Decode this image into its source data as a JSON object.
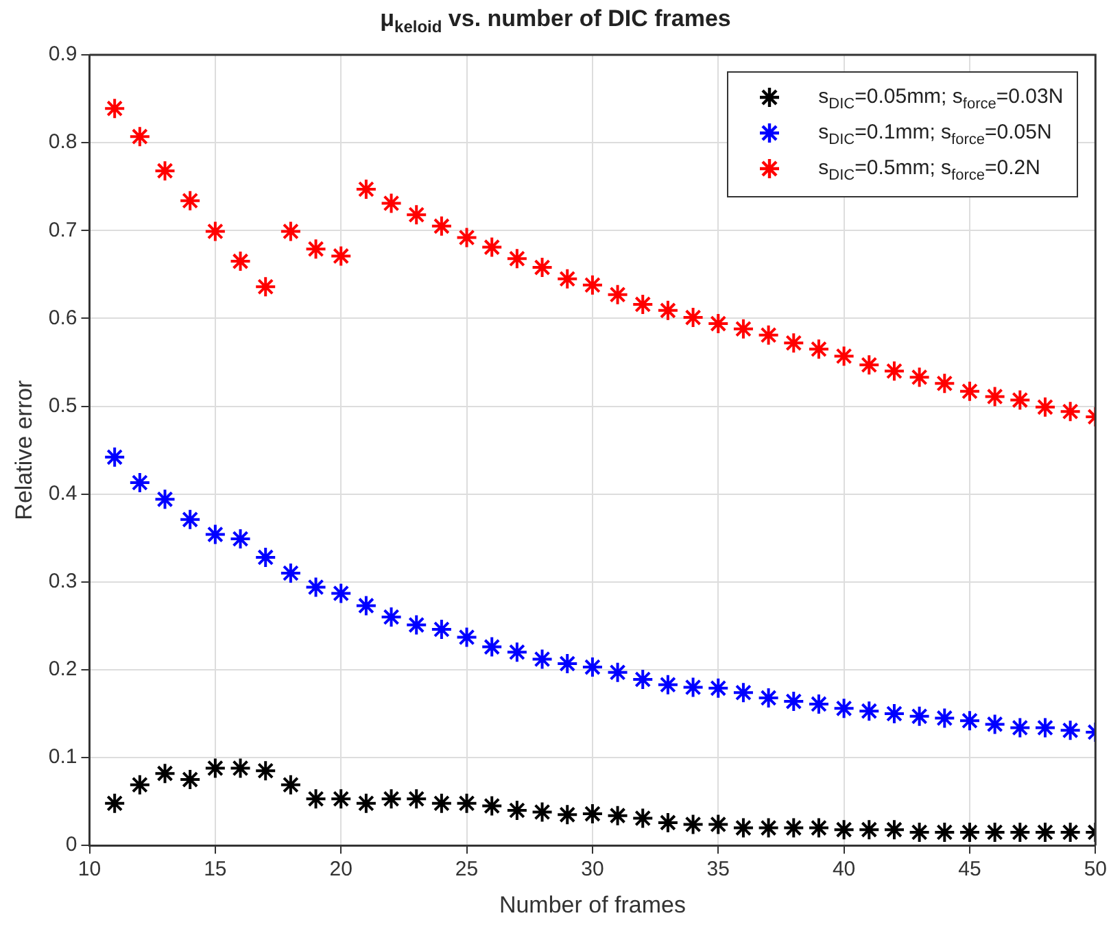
{
  "chart_data": {
    "type": "scatter",
    "title": "μ$_{keloid}$ vs. number of DIC frames",
    "xlabel": "Number of frames",
    "ylabel": "Relative error",
    "x": [
      11,
      12,
      13,
      14,
      15,
      16,
      17,
      18,
      19,
      20,
      21,
      22,
      23,
      24,
      25,
      26,
      27,
      28,
      29,
      30,
      31,
      32,
      33,
      34,
      35,
      36,
      37,
      38,
      39,
      40,
      41,
      42,
      43,
      44,
      45,
      46,
      47,
      48,
      49,
      50
    ],
    "series": [
      {
        "name": "s$_{DIC}$=0.05mm; s$_{force}$=0.03N",
        "color": "#000000",
        "values": [
          0.048,
          0.069,
          0.082,
          0.075,
          0.088,
          0.088,
          0.085,
          0.069,
          0.053,
          0.053,
          0.048,
          0.053,
          0.053,
          0.048,
          0.048,
          0.045,
          0.04,
          0.038,
          0.035,
          0.036,
          0.034,
          0.031,
          0.026,
          0.024,
          0.024,
          0.02,
          0.02,
          0.02,
          0.02,
          0.018,
          0.018,
          0.018,
          0.015,
          0.015,
          0.015,
          0.015,
          0.015,
          0.015,
          0.015,
          0.015
        ]
      },
      {
        "name": "s$_{DIC}$=0.1mm; s$_{force}$=0.05N",
        "color": "#0000ff",
        "values": [
          0.442,
          0.413,
          0.394,
          0.371,
          0.354,
          0.349,
          0.328,
          0.31,
          0.294,
          0.287,
          0.273,
          0.26,
          0.251,
          0.246,
          0.237,
          0.226,
          0.22,
          0.212,
          0.207,
          0.203,
          0.197,
          0.189,
          0.183,
          0.18,
          0.179,
          0.174,
          0.168,
          0.164,
          0.161,
          0.156,
          0.153,
          0.15,
          0.147,
          0.145,
          0.142,
          0.138,
          0.134,
          0.134,
          0.131,
          0.129
        ]
      },
      {
        "name": "s$_{DIC}$=0.5mm; s$_{force}$=0.2N",
        "color": "#ff0000",
        "values": [
          0.839,
          0.807,
          0.768,
          0.734,
          0.699,
          0.665,
          0.636,
          0.699,
          0.679,
          0.671,
          0.747,
          0.731,
          0.718,
          0.705,
          0.692,
          0.681,
          0.668,
          0.658,
          0.645,
          0.638,
          0.627,
          0.616,
          0.609,
          0.601,
          0.594,
          0.588,
          0.581,
          0.572,
          0.565,
          0.557,
          0.547,
          0.54,
          0.533,
          0.526,
          0.517,
          0.511,
          0.507,
          0.499,
          0.494,
          0.488
        ]
      }
    ],
    "xlim": [
      10,
      50
    ],
    "xticks": [
      10,
      15,
      20,
      25,
      30,
      35,
      40,
      45,
      50
    ],
    "ylim": [
      0,
      0.9
    ],
    "yticks": [
      0,
      0.1,
      0.2,
      0.3,
      0.4,
      0.5,
      0.6,
      0.7,
      0.8,
      0.9
    ],
    "grid": true,
    "legend": "top right",
    "marker": "cross"
  }
}
